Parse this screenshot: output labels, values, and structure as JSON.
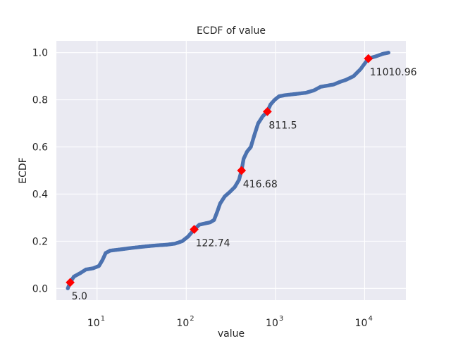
{
  "chart_data": {
    "type": "scatter",
    "title": "ECDF of value",
    "xlabel": "value",
    "ylabel": "ECDF",
    "x_scale": "log",
    "xlim": [
      3.5,
      29000
    ],
    "ylim": [
      -0.05,
      1.05
    ],
    "x_ticks": [
      {
        "value": 10,
        "base": "10",
        "exp": "1"
      },
      {
        "value": 100,
        "base": "10",
        "exp": "2"
      },
      {
        "value": 1000,
        "base": "10",
        "exp": "3"
      },
      {
        "value": 10000,
        "base": "10",
        "exp": "4"
      }
    ],
    "y_ticks": [
      {
        "value": 0.0,
        "label": "0.0"
      },
      {
        "value": 0.2,
        "label": "0.2"
      },
      {
        "value": 0.4,
        "label": "0.4"
      },
      {
        "value": 0.6,
        "label": "0.6"
      },
      {
        "value": 0.8,
        "label": "0.8"
      },
      {
        "value": 1.0,
        "label": "1.0"
      }
    ],
    "grid": true,
    "series": [
      {
        "color": "#4c72b0",
        "curve": [
          [
            4.7,
            0.0
          ],
          [
            5.0,
            0.025
          ],
          [
            5.5,
            0.05
          ],
          [
            6.5,
            0.065
          ],
          [
            7.5,
            0.08
          ],
          [
            9,
            0.085
          ],
          [
            10.5,
            0.095
          ],
          [
            11.5,
            0.12
          ],
          [
            12.5,
            0.15
          ],
          [
            14,
            0.16
          ],
          [
            18,
            0.165
          ],
          [
            25,
            0.172
          ],
          [
            35,
            0.178
          ],
          [
            45,
            0.182
          ],
          [
            60,
            0.185
          ],
          [
            75,
            0.19
          ],
          [
            90,
            0.2
          ],
          [
            105,
            0.22
          ],
          [
            122.74,
            0.25
          ],
          [
            140,
            0.27
          ],
          [
            160,
            0.275
          ],
          [
            185,
            0.28
          ],
          [
            205,
            0.29
          ],
          [
            220,
            0.32
          ],
          [
            240,
            0.36
          ],
          [
            270,
            0.39
          ],
          [
            310,
            0.41
          ],
          [
            350,
            0.43
          ],
          [
            390,
            0.46
          ],
          [
            416.68,
            0.5
          ],
          [
            440,
            0.55
          ],
          [
            480,
            0.58
          ],
          [
            530,
            0.6
          ],
          [
            580,
            0.65
          ],
          [
            640,
            0.7
          ],
          [
            720,
            0.73
          ],
          [
            811.5,
            0.75
          ],
          [
            880,
            0.78
          ],
          [
            980,
            0.8
          ],
          [
            1100,
            0.815
          ],
          [
            1300,
            0.82
          ],
          [
            1700,
            0.825
          ],
          [
            2200,
            0.83
          ],
          [
            2700,
            0.84
          ],
          [
            3200,
            0.855
          ],
          [
            3800,
            0.86
          ],
          [
            4500,
            0.865
          ],
          [
            5200,
            0.875
          ],
          [
            6200,
            0.885
          ],
          [
            7500,
            0.9
          ],
          [
            9000,
            0.93
          ],
          [
            11010.96,
            0.975
          ],
          [
            13500,
            0.985
          ],
          [
            16000,
            0.995
          ],
          [
            18500,
            1.0
          ]
        ]
      }
    ],
    "quantile_markers": {
      "color": "#ff0000",
      "points": [
        {
          "x": 5.0,
          "y": 0.025,
          "label": "5.0"
        },
        {
          "x": 122.74,
          "y": 0.25,
          "label": "122.74"
        },
        {
          "x": 416.68,
          "y": 0.5,
          "label": "416.68"
        },
        {
          "x": 811.5,
          "y": 0.75,
          "label": "811.5"
        },
        {
          "x": 11010.96,
          "y": 0.975,
          "label": "11010.96"
        }
      ]
    },
    "colors": {
      "background": "#eaeaf2",
      "grid": "#ffffff"
    }
  }
}
